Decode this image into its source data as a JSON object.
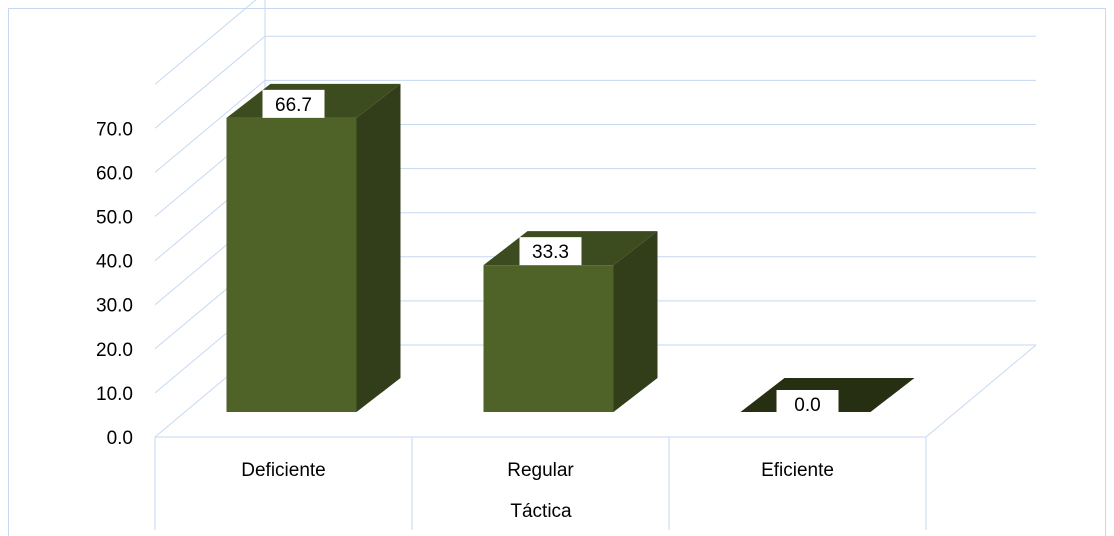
{
  "chart_data": {
    "type": "bar",
    "categories": [
      "Deficiente",
      "Regular",
      "Eficiente"
    ],
    "values": [
      66.7,
      33.3,
      0.0
    ],
    "data_labels": [
      "66.7",
      "33.3",
      "0.0"
    ],
    "xlabel": "Táctica",
    "ylabel": "",
    "ylim": [
      0,
      70
    ],
    "yticks": [
      "0.0",
      "10.0",
      "20.0",
      "30.0",
      "40.0",
      "50.0",
      "60.0",
      "70.0"
    ],
    "grid": true,
    "legend": "none",
    "style": "3d-column",
    "colors": {
      "bar_front": "#4f6228",
      "bar_side": "#323e19",
      "bar_top": "#3d4c1f",
      "grid": "#c6d9f1",
      "frame": "#c6d9f1",
      "text": "#000000"
    }
  }
}
